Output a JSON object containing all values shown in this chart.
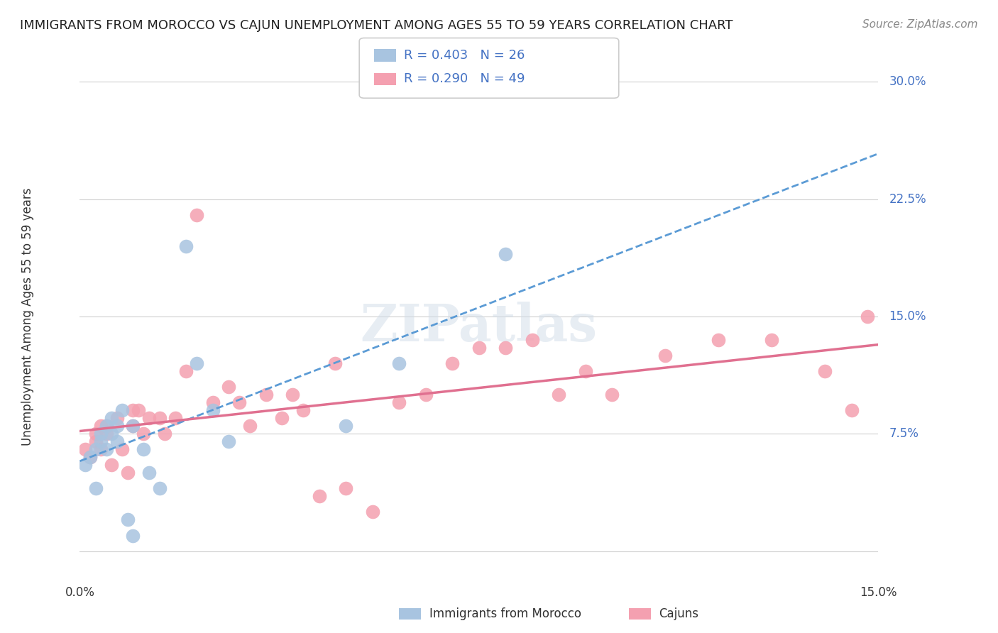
{
  "title": "IMMIGRANTS FROM MOROCCO VS CAJUN UNEMPLOYMENT AMONG AGES 55 TO 59 YEARS CORRELATION CHART",
  "source": "Source: ZipAtlas.com",
  "ylabel": "Unemployment Among Ages 55 to 59 years",
  "xlim": [
    0.0,
    0.15
  ],
  "ylim": [
    -0.02,
    0.32
  ],
  "yticks": [
    0.0,
    0.075,
    0.15,
    0.225,
    0.3
  ],
  "ytick_labels": [
    "",
    "7.5%",
    "15.0%",
    "22.5%",
    "30.0%"
  ],
  "legend_label_morocco": "Immigrants from Morocco",
  "legend_label_cajun": "Cajuns",
  "color_morocco": "#a8c4e0",
  "color_cajun": "#f4a0b0",
  "trendline_morocco_color": "#5b9bd5",
  "trendline_cajun_color": "#e07090",
  "background_color": "#ffffff",
  "grid_color": "#d0d0d0",
  "watermark": "ZIPatlas",
  "morocco_x": [
    0.001,
    0.002,
    0.003,
    0.003,
    0.004,
    0.004,
    0.005,
    0.005,
    0.006,
    0.006,
    0.007,
    0.007,
    0.008,
    0.009,
    0.01,
    0.01,
    0.012,
    0.013,
    0.015,
    0.02,
    0.022,
    0.025,
    0.028,
    0.05,
    0.06,
    0.08
  ],
  "morocco_y": [
    0.055,
    0.06,
    0.04,
    0.065,
    0.07,
    0.075,
    0.065,
    0.08,
    0.075,
    0.085,
    0.07,
    0.08,
    0.09,
    0.02,
    0.01,
    0.08,
    0.065,
    0.05,
    0.04,
    0.195,
    0.12,
    0.09,
    0.07,
    0.08,
    0.12,
    0.19
  ],
  "cajun_x": [
    0.001,
    0.002,
    0.003,
    0.003,
    0.004,
    0.004,
    0.005,
    0.005,
    0.006,
    0.007,
    0.008,
    0.009,
    0.01,
    0.01,
    0.011,
    0.012,
    0.013,
    0.015,
    0.016,
    0.018,
    0.02,
    0.022,
    0.025,
    0.028,
    0.03,
    0.032,
    0.035,
    0.038,
    0.04,
    0.042,
    0.045,
    0.048,
    0.05,
    0.055,
    0.06,
    0.065,
    0.07,
    0.075,
    0.08,
    0.085,
    0.09,
    0.095,
    0.1,
    0.11,
    0.12,
    0.13,
    0.14,
    0.145,
    0.148
  ],
  "cajun_y": [
    0.065,
    0.06,
    0.07,
    0.075,
    0.065,
    0.08,
    0.075,
    0.08,
    0.055,
    0.085,
    0.065,
    0.05,
    0.08,
    0.09,
    0.09,
    0.075,
    0.085,
    0.085,
    0.075,
    0.085,
    0.115,
    0.215,
    0.095,
    0.105,
    0.095,
    0.08,
    0.1,
    0.085,
    0.1,
    0.09,
    0.035,
    0.12,
    0.04,
    0.025,
    0.095,
    0.1,
    0.12,
    0.13,
    0.13,
    0.135,
    0.1,
    0.115,
    0.1,
    0.125,
    0.135,
    0.135,
    0.115,
    0.09,
    0.15
  ]
}
